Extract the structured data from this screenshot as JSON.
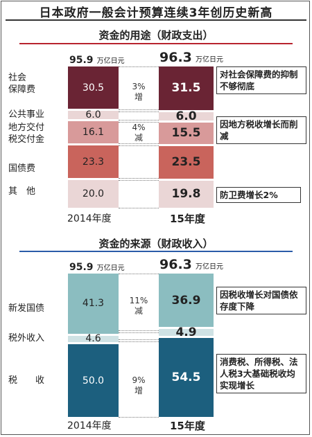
{
  "title": "日本政府一般会计预算连续3年创历史新高",
  "unit": "万亿日元",
  "colors": {
    "social": "#6a2434",
    "public": "#ead6d6",
    "local": "#d89a9a",
    "debt": "#c9645c",
    "other": "#ead6d6",
    "red_rule": "#b8232e",
    "blue_rule": "#2a5ca8",
    "newbond": "#8bbdc0",
    "nontax": "#cfe2e4",
    "tax": "#1c5f7e"
  },
  "chart_data": [
    {
      "type": "bar",
      "title": "资金的用途（财政支出）",
      "categories": [
        "2014年度",
        "15年度"
      ],
      "totals": [
        95.9,
        96.3
      ],
      "series": [
        {
          "name": "社会保障费",
          "values": [
            30.5,
            31.5
          ]
        },
        {
          "name": "公共事业",
          "values": [
            6.0,
            6.0
          ]
        },
        {
          "name": "地方交付税交付金",
          "values": [
            16.1,
            15.5
          ]
        },
        {
          "name": "国债费",
          "values": [
            23.3,
            23.5
          ]
        },
        {
          "name": "其他",
          "values": [
            20.0,
            19.8
          ]
        }
      ],
      "changes": [
        {
          "text": "3%",
          "dir": "增"
        },
        {
          "text": "4%",
          "dir": "减"
        }
      ],
      "callouts": [
        "对社会保障费的抑制不够彻底",
        "因地方税收增长而削减",
        "防卫费增长2%"
      ]
    },
    {
      "type": "bar",
      "title": "资金的来源（财政收入）",
      "categories": [
        "2014年度",
        "15年度"
      ],
      "totals": [
        95.9,
        96.3
      ],
      "series": [
        {
          "name": "新发国债",
          "values": [
            41.3,
            36.9
          ]
        },
        {
          "name": "税外收入",
          "values": [
            4.6,
            4.9
          ]
        },
        {
          "name": "税收",
          "values": [
            50.0,
            54.5
          ]
        }
      ],
      "changes": [
        {
          "text": "11%",
          "dir": "减"
        },
        {
          "text": "9%",
          "dir": "增"
        }
      ],
      "callouts": [
        "因税收增长对国债依存度下降",
        "消费税、所得税、法人税3大基础税收均实现增长"
      ]
    }
  ],
  "labels": {
    "exp": {
      "social_1": "社会",
      "social_2": "保障费",
      "public": "公共事业",
      "local_1": "地方交付",
      "local_2": "税交付金",
      "debt": "国债费",
      "other": "其　他"
    },
    "rev": {
      "newbond": "新发国债",
      "nontax": "税外收入",
      "tax": "税　　收"
    }
  },
  "callouts_text": {
    "exp_social": "对社会保障费的抑制不够彻底",
    "exp_local": "因地方税收增长而削减",
    "exp_other": "防卫费增长2%",
    "rev_newbond": "因税收增长对国债依存度下降",
    "rev_tax": "消费税、所得税、法人税3大基础税收均实现增长"
  }
}
